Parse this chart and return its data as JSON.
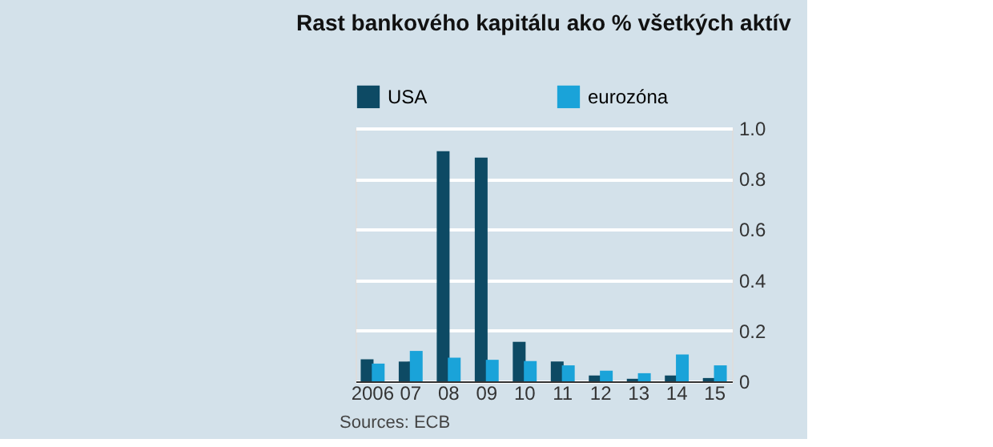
{
  "chart_data": {
    "type": "bar",
    "title": "Rast bankového kapitálu ako % všetkých aktív",
    "categories": [
      "2006",
      "07",
      "08",
      "09",
      "10",
      "11",
      "12",
      "13",
      "14",
      "15"
    ],
    "series": [
      {
        "name": "USA",
        "color": "#0d4a64",
        "values": [
          0.087,
          0.078,
          0.909,
          0.884,
          0.156,
          0.078,
          0.023,
          0.01,
          0.023,
          0.013
        ]
      },
      {
        "name": "eurozóna",
        "color": "#1aa3d9",
        "values": [
          0.07,
          0.12,
          0.093,
          0.085,
          0.08,
          0.063,
          0.042,
          0.032,
          0.106,
          0.063
        ]
      }
    ],
    "ylim": [
      0,
      1.0
    ],
    "yticks": [
      0,
      0.2,
      0.4,
      0.6,
      0.8,
      {
        "value": 1.0,
        "label": "1.0"
      }
    ],
    "grid": "y",
    "legend": "top left",
    "annotations": [
      "Sources: ECB"
    ]
  }
}
